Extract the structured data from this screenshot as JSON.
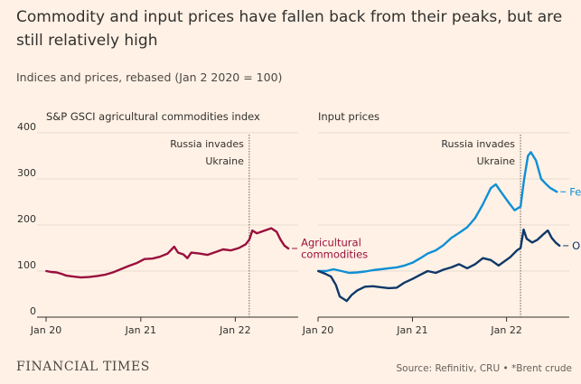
{
  "header": {
    "title": "Commodity and input prices have fallen back from their peaks, but are still relatively high",
    "subtitle": "Indices and prices, rebased (Jan 2 2020 = 100)"
  },
  "footer": {
    "logo": "FINANCIAL TIMES",
    "source": "Source: Refinitiv, CRU • *Brent crude"
  },
  "colors": {
    "background": "#fff1e5",
    "agri": "#990f3d",
    "fertiliser": "#0f8fd5",
    "oil": "#0d3869",
    "axis": "#33302e",
    "grid": "#e7dbd0"
  },
  "chart_data": [
    {
      "type": "line",
      "title": "S&P GSCI agricultural commodities index",
      "ylim": [
        0,
        400
      ],
      "yticks": [
        0,
        100,
        200,
        300,
        400
      ],
      "xlim": [
        "2020-01-01",
        "2022-09-01"
      ],
      "xticks": [
        {
          "date": "2020-01-01",
          "label": "Jan 20"
        },
        {
          "date": "2021-01-01",
          "label": "Jan 21"
        },
        {
          "date": "2022-01-01",
          "label": "Jan 22"
        }
      ],
      "grid": true,
      "annotation": {
        "date": "2022-02-24",
        "lines": [
          "Russia invades",
          "Ukraine"
        ]
      },
      "series": [
        {
          "name": "Agricultural commodities",
          "label_lines": [
            "Agricultural",
            "commodities"
          ],
          "color": "#990f3d",
          "points": [
            [
              "2020-01-02",
              100
            ],
            [
              "2020-01-20",
              98
            ],
            [
              "2020-02-10",
              97
            ],
            [
              "2020-03-01",
              94
            ],
            [
              "2020-03-20",
              90
            ],
            [
              "2020-04-15",
              88
            ],
            [
              "2020-05-15",
              86
            ],
            [
              "2020-06-15",
              87
            ],
            [
              "2020-07-15",
              89
            ],
            [
              "2020-08-15",
              92
            ],
            [
              "2020-09-15",
              97
            ],
            [
              "2020-10-15",
              104
            ],
            [
              "2020-11-15",
              111
            ],
            [
              "2020-12-15",
              117
            ],
            [
              "2021-01-15",
              126
            ],
            [
              "2021-02-15",
              127
            ],
            [
              "2021-03-15",
              131
            ],
            [
              "2021-04-15",
              138
            ],
            [
              "2021-05-10",
              153
            ],
            [
              "2021-05-25",
              140
            ],
            [
              "2021-06-15",
              136
            ],
            [
              "2021-06-30",
              128
            ],
            [
              "2021-07-15",
              140
            ],
            [
              "2021-08-15",
              138
            ],
            [
              "2021-09-15",
              135
            ],
            [
              "2021-10-15",
              141
            ],
            [
              "2021-11-15",
              147
            ],
            [
              "2021-12-15",
              145
            ],
            [
              "2022-01-15",
              150
            ],
            [
              "2022-02-10",
              158
            ],
            [
              "2022-02-24",
              168
            ],
            [
              "2022-03-08",
              188
            ],
            [
              "2022-03-25",
              182
            ],
            [
              "2022-04-15",
              186
            ],
            [
              "2022-05-05",
              190
            ],
            [
              "2022-05-20",
              193
            ],
            [
              "2022-06-10",
              185
            ],
            [
              "2022-06-25",
              168
            ],
            [
              "2022-07-10",
              155
            ],
            [
              "2022-07-25",
              149
            ]
          ]
        }
      ]
    },
    {
      "type": "line",
      "title": "Input prices",
      "ylim": [
        0,
        400
      ],
      "yticks": [
        0,
        100,
        200,
        300,
        400
      ],
      "xlim": [
        "2020-01-01",
        "2022-09-01"
      ],
      "xticks": [
        {
          "date": "2020-01-01",
          "label": "Jan 20"
        },
        {
          "date": "2021-01-01",
          "label": "Jan 21"
        },
        {
          "date": "2022-01-01",
          "label": "Jan 22"
        }
      ],
      "grid": true,
      "annotation": {
        "date": "2022-02-24",
        "lines": [
          "Russia invades",
          "Ukraine"
        ]
      },
      "series": [
        {
          "name": "Fertiliser",
          "label_lines": [
            "Fertiliser"
          ],
          "color": "#0f8fd5",
          "points": [
            [
              "2020-01-02",
              100
            ],
            [
              "2020-02-01",
              100
            ],
            [
              "2020-03-01",
              104
            ],
            [
              "2020-04-01",
              100
            ],
            [
              "2020-05-01",
              96
            ],
            [
              "2020-06-01",
              97
            ],
            [
              "2020-07-01",
              99
            ],
            [
              "2020-08-01",
              102
            ],
            [
              "2020-09-01",
              104
            ],
            [
              "2020-10-01",
              106
            ],
            [
              "2020-11-01",
              108
            ],
            [
              "2020-12-01",
              112
            ],
            [
              "2021-01-01",
              118
            ],
            [
              "2021-02-01",
              128
            ],
            [
              "2021-03-01",
              138
            ],
            [
              "2021-04-01",
              145
            ],
            [
              "2021-05-01",
              156
            ],
            [
              "2021-06-01",
              172
            ],
            [
              "2021-07-01",
              183
            ],
            [
              "2021-08-01",
              195
            ],
            [
              "2021-09-01",
              215
            ],
            [
              "2021-10-01",
              245
            ],
            [
              "2021-11-01",
              280
            ],
            [
              "2021-11-20",
              288
            ],
            [
              "2021-12-10",
              272
            ],
            [
              "2022-01-10",
              248
            ],
            [
              "2022-02-01",
              232
            ],
            [
              "2022-02-24",
              240
            ],
            [
              "2022-03-10",
              300
            ],
            [
              "2022-03-25",
              350
            ],
            [
              "2022-04-05",
              358
            ],
            [
              "2022-04-25",
              340
            ],
            [
              "2022-05-15",
              300
            ],
            [
              "2022-06-01",
              290
            ],
            [
              "2022-06-20",
              280
            ],
            [
              "2022-07-15",
              272
            ]
          ]
        },
        {
          "name": "Oil*",
          "label_lines": [
            "Oil*"
          ],
          "color": "#0d3869",
          "points": [
            [
              "2020-01-02",
              100
            ],
            [
              "2020-01-25",
              95
            ],
            [
              "2020-02-20",
              88
            ],
            [
              "2020-03-10",
              70
            ],
            [
              "2020-03-25",
              45
            ],
            [
              "2020-04-21",
              35
            ],
            [
              "2020-05-10",
              48
            ],
            [
              "2020-06-01",
              58
            ],
            [
              "2020-07-01",
              66
            ],
            [
              "2020-08-01",
              67
            ],
            [
              "2020-09-01",
              65
            ],
            [
              "2020-10-01",
              63
            ],
            [
              "2020-11-01",
              64
            ],
            [
              "2020-12-01",
              75
            ],
            [
              "2021-01-01",
              83
            ],
            [
              "2021-02-01",
              92
            ],
            [
              "2021-03-01",
              100
            ],
            [
              "2021-04-01",
              96
            ],
            [
              "2021-05-01",
              103
            ],
            [
              "2021-06-01",
              108
            ],
            [
              "2021-07-01",
              115
            ],
            [
              "2021-08-01",
              106
            ],
            [
              "2021-09-01",
              115
            ],
            [
              "2021-10-01",
              128
            ],
            [
              "2021-11-01",
              124
            ],
            [
              "2021-12-01",
              112
            ],
            [
              "2022-01-15",
              130
            ],
            [
              "2022-02-10",
              145
            ],
            [
              "2022-02-24",
              150
            ],
            [
              "2022-03-08",
              190
            ],
            [
              "2022-03-20",
              170
            ],
            [
              "2022-04-10",
              162
            ],
            [
              "2022-05-01",
              168
            ],
            [
              "2022-05-20",
              178
            ],
            [
              "2022-06-10",
              188
            ],
            [
              "2022-06-25",
              172
            ],
            [
              "2022-07-10",
              162
            ],
            [
              "2022-07-25",
              155
            ]
          ]
        }
      ]
    }
  ]
}
